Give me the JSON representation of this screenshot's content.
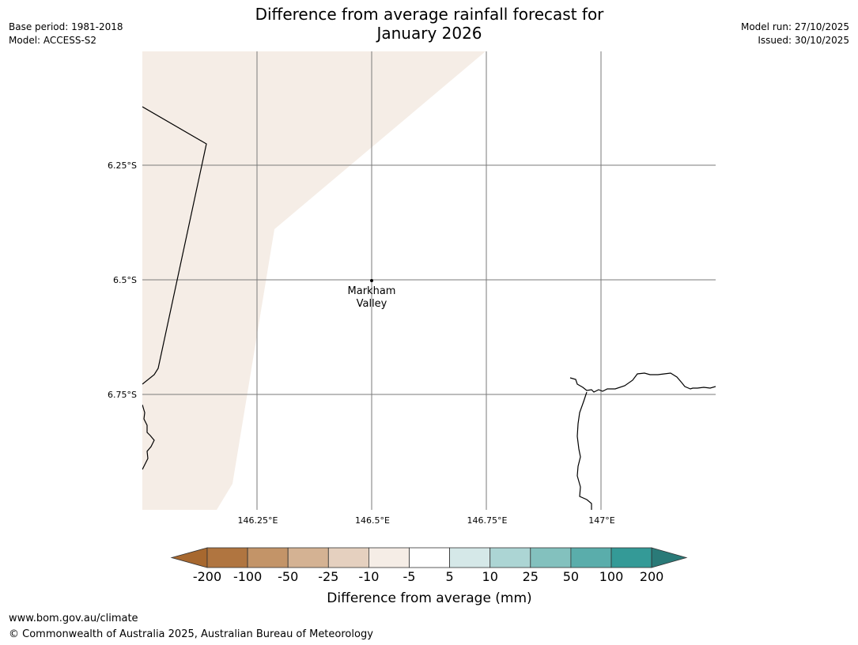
{
  "title": {
    "line1": "Difference from average rainfall forecast for",
    "line2": "January 2026"
  },
  "meta_left": {
    "base_period": "Base period: 1981-2018",
    "model": "Model: ACCESS-S2"
  },
  "meta_right": {
    "model_run": "Model run: 27/10/2025",
    "issued": "Issued: 30/10/2025"
  },
  "map": {
    "lat_labels": [
      "6.25°S",
      "6.5°S",
      "6.75°S"
    ],
    "lon_labels": [
      "146.25°E",
      "146.5°E",
      "146.75°E",
      "147°E"
    ],
    "place": {
      "line1": "Markham",
      "line2": "Valley"
    },
    "shade_color": "#f5ede6",
    "grid_color": "#7a7a7a"
  },
  "colorbar": {
    "title": "Difference from average (mm)",
    "boundaries": [
      "-200",
      "-100",
      "-50",
      "-25",
      "-10",
      "-5",
      "5",
      "10",
      "25",
      "50",
      "100",
      "200"
    ],
    "colors": [
      "#a7682f",
      "#b07540",
      "#c39468",
      "#d4b293",
      "#e5d0bf",
      "#f5ede6",
      "#ffffff",
      "#d5e8e8",
      "#acd5d4",
      "#83c1be",
      "#5aadab",
      "#349a97",
      "#2a7a78"
    ]
  },
  "footer": {
    "url": "www.bom.gov.au/climate",
    "copyright": "© Commonwealth of Australia 2025, Australian Bureau of Meteorology"
  }
}
